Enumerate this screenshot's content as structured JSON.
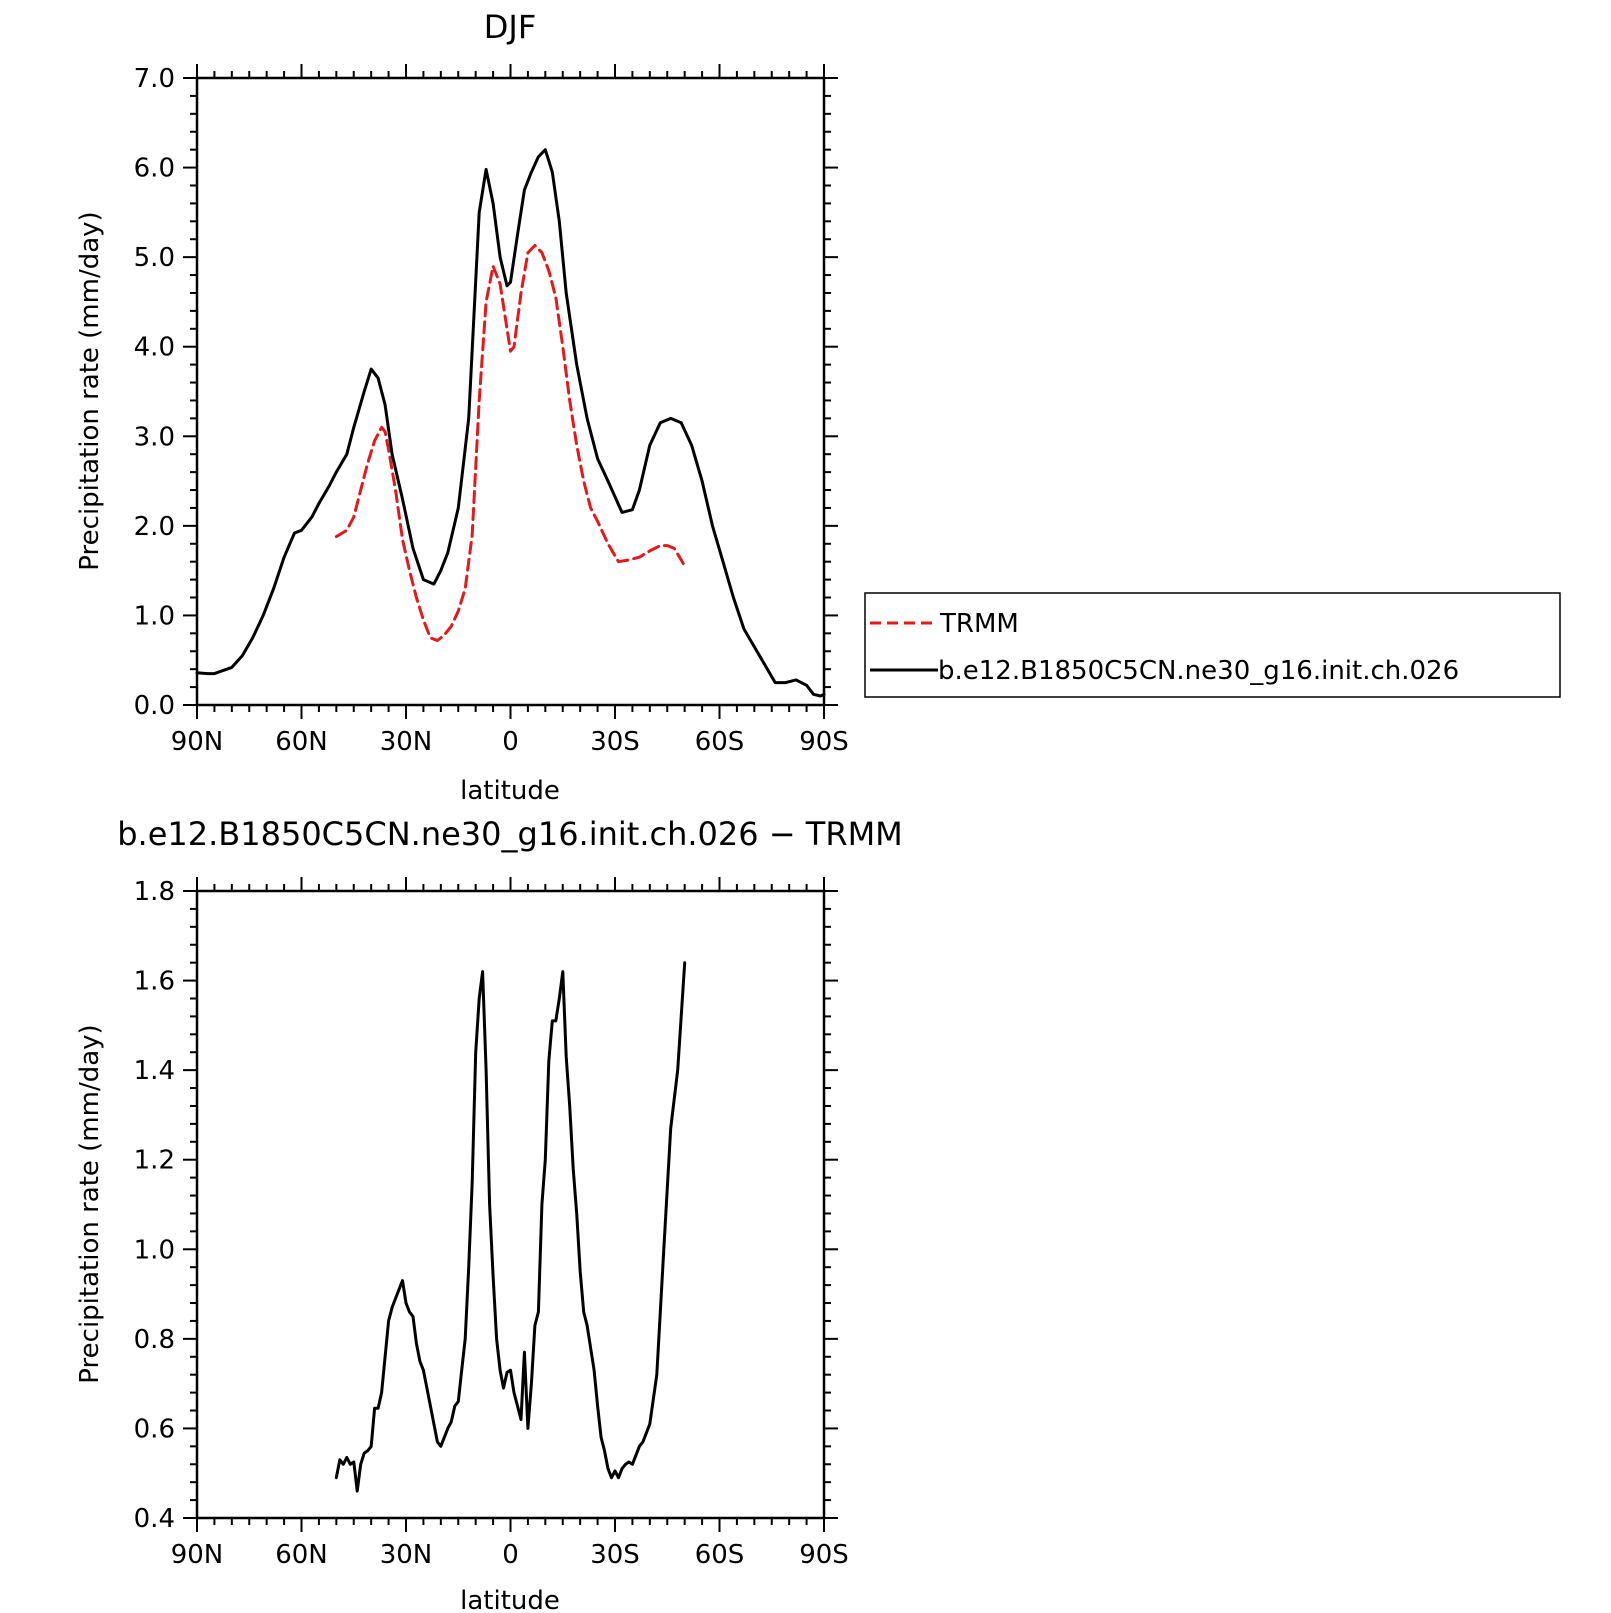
{
  "chart_data": [
    {
      "type": "line",
      "title": "DJF",
      "xlabel": "latitude",
      "ylabel": "Precipitation rate (mm/day)",
      "xlim": [
        90,
        -90
      ],
      "ylim": [
        0.0,
        7.0
      ],
      "xticks": [
        90,
        60,
        30,
        0,
        -30,
        -60,
        -90
      ],
      "xtick_labels": [
        "90N",
        "60N",
        "30N",
        "0",
        "30S",
        "60S",
        "90S"
      ],
      "yticks": [
        0.0,
        1.0,
        2.0,
        3.0,
        4.0,
        5.0,
        6.0,
        7.0
      ],
      "ytick_labels": [
        "0.0",
        "1.0",
        "2.0",
        "3.0",
        "4.0",
        "5.0",
        "6.0",
        "7.0"
      ],
      "legend": {
        "placement": "right, outside plot",
        "entries": [
          "TRMM",
          "b.e12.B1850C5CN.ne30_g16.init.ch.026"
        ]
      },
      "series": [
        {
          "name": "TRMM",
          "color": "#e31a1c",
          "dash": true,
          "x": [
            50,
            47,
            45,
            43,
            41,
            39,
            37,
            36,
            35,
            33,
            31,
            29,
            27,
            25,
            23,
            21,
            19,
            17,
            15,
            13,
            11,
            9,
            7,
            5,
            3,
            1,
            0,
            -1,
            -3,
            -5,
            -7,
            -9,
            -11,
            -13,
            -15,
            -17,
            -19,
            -21,
            -23,
            -25,
            -28,
            -31,
            -34,
            -37,
            -40,
            -43,
            -45,
            -47,
            -49,
            -50
          ],
          "y": [
            1.88,
            1.95,
            2.1,
            2.4,
            2.7,
            2.95,
            3.1,
            3.05,
            2.85,
            2.4,
            1.85,
            1.5,
            1.2,
            0.95,
            0.75,
            0.72,
            0.78,
            0.88,
            1.05,
            1.3,
            1.9,
            3.4,
            4.5,
            4.9,
            4.7,
            4.2,
            3.95,
            4.0,
            4.6,
            5.05,
            5.13,
            5.05,
            4.85,
            4.55,
            4.0,
            3.4,
            2.9,
            2.5,
            2.2,
            2.05,
            1.8,
            1.6,
            1.62,
            1.65,
            1.72,
            1.78,
            1.78,
            1.75,
            1.62,
            1.55
          ]
        },
        {
          "name": "b.e12.B1850C5CN.ne30_g16.init.ch.026",
          "color": "#000000",
          "dash": false,
          "x": [
            90,
            87,
            85,
            80,
            77,
            74,
            71,
            68,
            65,
            62,
            60,
            57,
            55,
            52,
            50,
            47,
            45,
            42,
            40,
            38,
            36,
            34,
            31,
            28,
            25,
            22,
            20,
            18,
            15,
            12,
            9,
            7,
            5,
            3,
            1,
            0,
            -2,
            -4,
            -6,
            -8,
            -10,
            -12,
            -14,
            -16,
            -19,
            -22,
            -25,
            -28,
            -32,
            -35,
            -37,
            -40,
            -43,
            -46,
            -49,
            -52,
            -55,
            -58,
            -61,
            -64,
            -67,
            -70,
            -73,
            -76,
            -79,
            -82,
            -85,
            -87,
            -89,
            -90
          ],
          "y": [
            0.36,
            0.35,
            0.35,
            0.42,
            0.55,
            0.75,
            1.0,
            1.3,
            1.65,
            1.92,
            1.95,
            2.1,
            2.25,
            2.45,
            2.6,
            2.8,
            3.1,
            3.5,
            3.75,
            3.65,
            3.35,
            2.8,
            2.3,
            1.75,
            1.4,
            1.35,
            1.5,
            1.7,
            2.2,
            3.2,
            5.5,
            5.98,
            5.6,
            5.0,
            4.68,
            4.72,
            5.25,
            5.75,
            5.95,
            6.12,
            6.2,
            5.95,
            5.4,
            4.6,
            3.8,
            3.2,
            2.75,
            2.5,
            2.15,
            2.18,
            2.4,
            2.9,
            3.15,
            3.2,
            3.15,
            2.9,
            2.5,
            2.0,
            1.6,
            1.2,
            0.85,
            0.65,
            0.45,
            0.25,
            0.25,
            0.28,
            0.22,
            0.12,
            0.1,
            0.12
          ]
        }
      ]
    },
    {
      "type": "line",
      "title": "b.e12.B1850C5CN.ne30_g16.init.ch.026 − TRMM",
      "xlabel": "latitude",
      "ylabel": "Precipitation rate (mm/day)",
      "xlim": [
        90,
        -90
      ],
      "ylim": [
        0.4,
        1.8
      ],
      "xticks": [
        90,
        60,
        30,
        0,
        -30,
        -60,
        -90
      ],
      "xtick_labels": [
        "90N",
        "60N",
        "30N",
        "0",
        "30S",
        "60S",
        "90S"
      ],
      "yticks": [
        0.4,
        0.6,
        0.8,
        1.0,
        1.2,
        1.4,
        1.6,
        1.8
      ],
      "ytick_labels": [
        "0.4",
        "0.6",
        "0.8",
        "1.0",
        "1.2",
        "1.4",
        "1.6",
        "1.8"
      ],
      "series": [
        {
          "color": "#000000",
          "dash": false,
          "x": [
            50,
            49,
            48,
            47,
            46,
            45,
            44,
            43,
            42,
            41,
            40,
            39,
            38,
            37,
            36,
            35,
            34,
            33,
            32,
            31,
            30,
            29,
            28,
            27,
            26,
            25,
            24,
            23,
            22,
            21,
            20,
            19,
            18,
            17,
            16,
            15,
            14,
            13,
            12,
            11,
            10,
            9,
            8,
            7,
            6,
            5,
            4,
            3,
            2,
            1,
            0,
            -1,
            -2,
            -3,
            -4,
            -5,
            -6,
            -7,
            -8,
            -9,
            -10,
            -11,
            -12,
            -13,
            -14,
            -15,
            -16,
            -17,
            -18,
            -19,
            -20,
            -21,
            -22,
            -23,
            -24,
            -25,
            -26,
            -27,
            -28,
            -29,
            -30,
            -31,
            -32,
            -33,
            -34,
            -35,
            -36,
            -37,
            -38,
            -40,
            -42,
            -44,
            -46,
            -48,
            -50
          ],
          "y": [
            0.49,
            0.53,
            0.52,
            0.535,
            0.52,
            0.525,
            0.46,
            0.52,
            0.545,
            0.55,
            0.56,
            0.645,
            0.645,
            0.68,
            0.76,
            0.84,
            0.87,
            0.89,
            0.91,
            0.93,
            0.88,
            0.86,
            0.85,
            0.79,
            0.75,
            0.73,
            0.69,
            0.65,
            0.61,
            0.57,
            0.56,
            0.58,
            0.6,
            0.615,
            0.65,
            0.66,
            0.73,
            0.8,
            0.96,
            1.15,
            1.44,
            1.56,
            1.62,
            1.4,
            1.1,
            0.94,
            0.8,
            0.73,
            0.69,
            0.725,
            0.73,
            0.68,
            0.65,
            0.62,
            0.77,
            0.6,
            0.7,
            0.83,
            0.86,
            1.1,
            1.2,
            1.42,
            1.51,
            1.51,
            1.56,
            1.62,
            1.43,
            1.32,
            1.18,
            1.08,
            0.95,
            0.86,
            0.83,
            0.78,
            0.73,
            0.65,
            0.58,
            0.55,
            0.51,
            0.49,
            0.505,
            0.49,
            0.51,
            0.52,
            0.525,
            0.52,
            0.54,
            0.56,
            0.57,
            0.61,
            0.72,
            1.0,
            1.27,
            1.4,
            1.64
          ]
        }
      ]
    }
  ]
}
